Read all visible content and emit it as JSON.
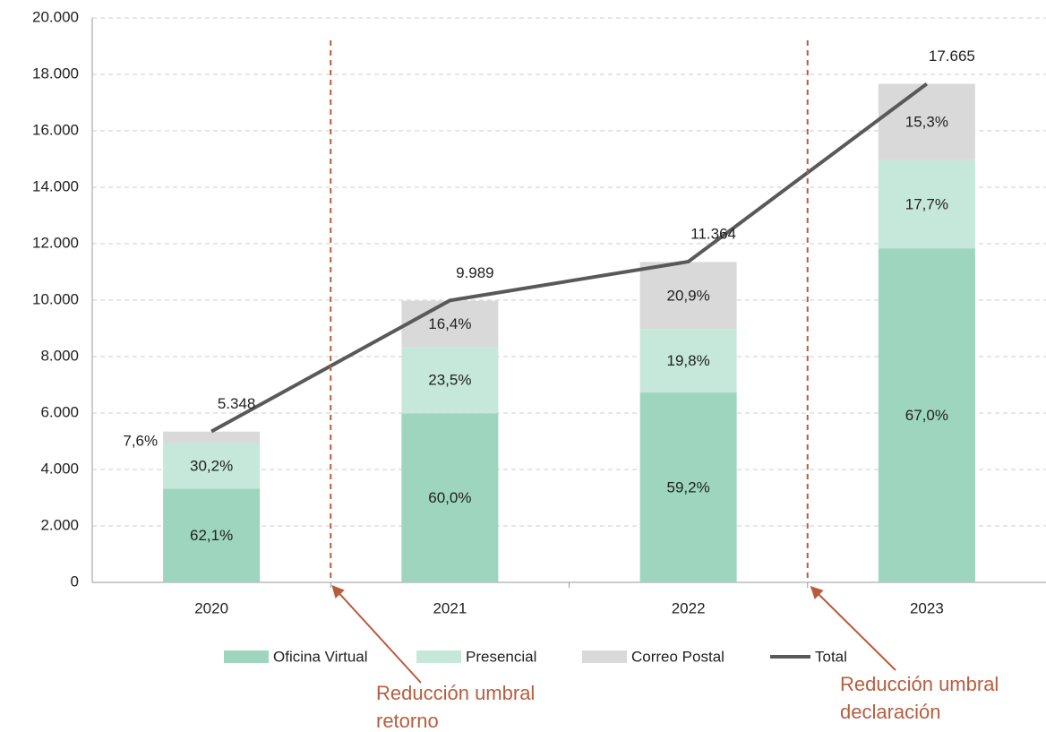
{
  "chart_data": {
    "type": "bar",
    "stacked": true,
    "categories": [
      "2020",
      "2021",
      "2022",
      "2023"
    ],
    "series": [
      {
        "name": "Oficina Virtual",
        "color": "#9dd5be",
        "values": [
          3321,
          5993,
          6727,
          11836
        ],
        "value_labels": [
          "62,1%",
          "60,0%",
          "59,2%",
          "67,0%"
        ]
      },
      {
        "name": "Presencial",
        "color": "#c5e8da",
        "values": [
          1615,
          2347,
          2250,
          3127
        ],
        "value_labels": [
          "30,2%",
          "23,5%",
          "19,8%",
          "17,7%"
        ]
      },
      {
        "name": "Correo Postal",
        "color": "#d9d9d9",
        "values": [
          406,
          1638,
          2375,
          2703
        ],
        "value_labels": [
          "7,6%",
          "16,4%",
          "20,9%",
          "15,3%"
        ]
      },
      {
        "name": "Total",
        "type": "line",
        "color": "#595959",
        "values": [
          5348,
          9989,
          11364,
          17665
        ],
        "value_labels": [
          "5.348",
          "9.989",
          "11.364",
          "17.665"
        ]
      }
    ],
    "ylim": [
      0,
      20000
    ],
    "yticks": [
      0,
      {
        "value": 2000,
        "label": "2.000"
      },
      {
        "value": 4000,
        "label": "4.000"
      },
      {
        "value": 6000,
        "label": "6.000"
      },
      {
        "value": 8000,
        "label": "8.000"
      },
      {
        "value": 10000,
        "label": "10.000"
      },
      {
        "value": 12000,
        "label": "12.000"
      },
      {
        "value": 14000,
        "label": "14.000"
      },
      {
        "value": 16000,
        "label": "16.000"
      },
      {
        "value": 18000,
        "label": "18.000"
      },
      {
        "value": 20000,
        "label": "20.000"
      }
    ],
    "grid": true,
    "legend": "bottom",
    "annotations": [
      {
        "text": [
          "Reducción umbral",
          "retorno"
        ],
        "color": "#b85c3e"
      },
      {
        "text": [
          "Reducción umbral",
          "declaración"
        ],
        "color": "#b85c3e"
      }
    ]
  }
}
